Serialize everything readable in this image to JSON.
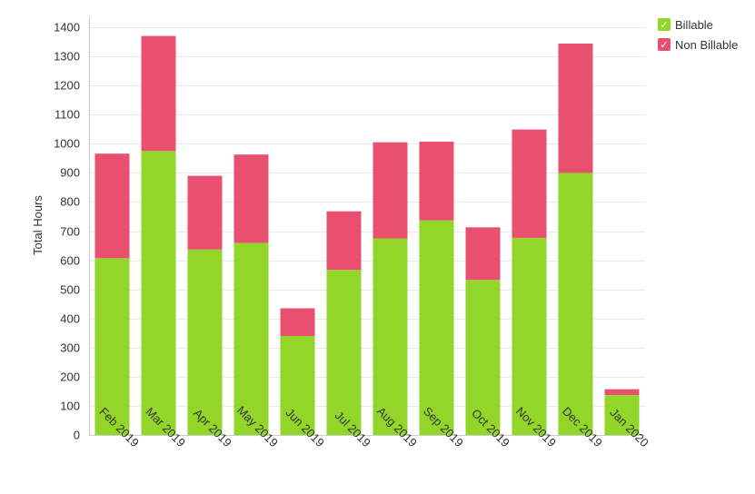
{
  "chart_data": {
    "type": "bar",
    "stacked": true,
    "categories": [
      "Feb 2019",
      "Mar 2019",
      "Apr 2019",
      "May 2019",
      "Jun 2019",
      "Jul 2019",
      "Aug 2019",
      "Sep 2019",
      "Oct 2019",
      "Nov 2019",
      "Dec 2019",
      "Jan 2020"
    ],
    "series": [
      {
        "name": "Billable",
        "color": "#93d62a",
        "values": [
          607,
          975,
          637,
          660,
          340,
          567,
          675,
          737,
          532,
          677,
          900,
          137
        ]
      },
      {
        "name": "Non Billable",
        "color": "#e94f6e",
        "values": [
          359,
          395,
          253,
          303,
          95,
          201,
          330,
          270,
          181,
          372,
          444,
          20
        ]
      }
    ],
    "title": "",
    "xlabel": "",
    "ylabel": "Total Hours",
    "ylim": [
      0,
      1400
    ],
    "yticks": [
      0,
      100,
      200,
      300,
      400,
      500,
      600,
      700,
      800,
      900,
      1000,
      1100,
      1200,
      1300,
      1400
    ],
    "grid": true,
    "legend_position": "top-right"
  },
  "legend": {
    "check_glyph": "✓"
  }
}
